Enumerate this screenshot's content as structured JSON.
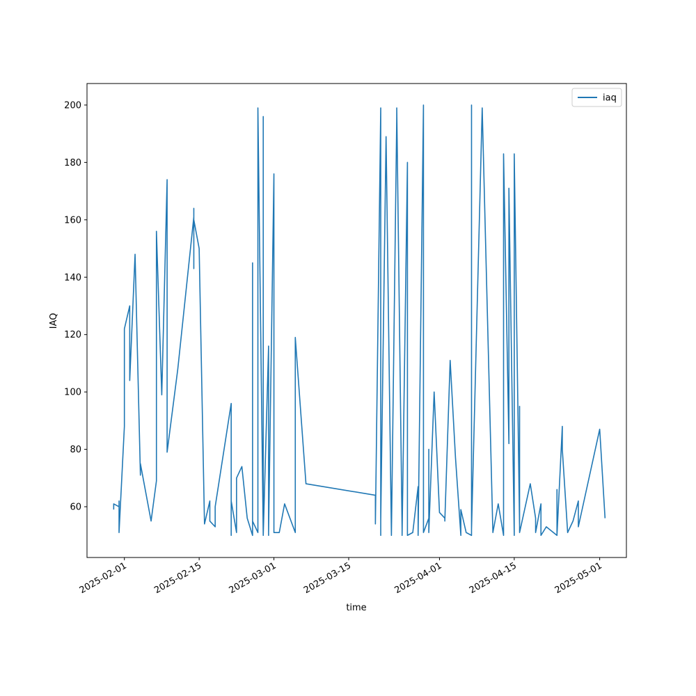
{
  "chart_data": {
    "type": "line",
    "xlabel": "time",
    "ylabel": "IAQ",
    "x": [
      "2025-01-30",
      "2025-01-30",
      "2025-01-31",
      "2025-01-31",
      "2025-01-31",
      "2025-01-31",
      "2025-01-31",
      "2025-02-01",
      "2025-02-01",
      "2025-02-01",
      "2025-02-02",
      "2025-02-02",
      "2025-02-03",
      "2025-02-03",
      "2025-02-04",
      "2025-02-04",
      "2025-02-06",
      "2025-02-07",
      "2025-02-07",
      "2025-02-08",
      "2025-02-09",
      "2025-02-09",
      "2025-02-11",
      "2025-02-14",
      "2025-02-14",
      "2025-02-14",
      "2025-02-14",
      "2025-02-15",
      "2025-02-16",
      "2025-02-17",
      "2025-02-17",
      "2025-02-18",
      "2025-02-18",
      "2025-02-21",
      "2025-02-21",
      "2025-02-21",
      "2025-02-22",
      "2025-02-22",
      "2025-02-23",
      "2025-02-24",
      "2025-02-25",
      "2025-02-25",
      "2025-02-25",
      "2025-02-25",
      "2025-02-26",
      "2025-02-26",
      "2025-02-27",
      "2025-02-27",
      "2025-02-27",
      "2025-02-27",
      "2025-02-28",
      "2025-02-28",
      "2025-02-28",
      "2025-03-01",
      "2025-03-01",
      "2025-03-02",
      "2025-03-03",
      "2025-03-05",
      "2025-03-05",
      "2025-03-05",
      "2025-03-07",
      "2025-03-20",
      "2025-03-20",
      "2025-03-21",
      "2025-03-21",
      "2025-03-21",
      "2025-03-22",
      "2025-03-23",
      "2025-03-24",
      "2025-03-24",
      "2025-03-25",
      "2025-03-25",
      "2025-03-26",
      "2025-03-26",
      "2025-03-27",
      "2025-03-28",
      "2025-03-28",
      "2025-03-29",
      "2025-03-29",
      "2025-03-30",
      "2025-03-30",
      "2025-03-30",
      "2025-03-31",
      "2025-04-01",
      "2025-04-02",
      "2025-04-02",
      "2025-04-03",
      "2025-04-04",
      "2025-04-05",
      "2025-04-05",
      "2025-04-06",
      "2025-04-07",
      "2025-04-07",
      "2025-04-07",
      "2025-04-09",
      "2025-04-11",
      "2025-04-12",
      "2025-04-13",
      "2025-04-13",
      "2025-04-14",
      "2025-04-14",
      "2025-04-15",
      "2025-04-15",
      "2025-04-16",
      "2025-04-16",
      "2025-04-16",
      "2025-04-18",
      "2025-04-19",
      "2025-04-19",
      "2025-04-20",
      "2025-04-20",
      "2025-04-21",
      "2025-04-23",
      "2025-04-23",
      "2025-04-23",
      "2025-04-24",
      "2025-04-24",
      "2025-04-25",
      "2025-04-26",
      "2025-04-27",
      "2025-04-27",
      "2025-04-27",
      "2025-05-01",
      "2025-05-02"
    ],
    "series": [
      {
        "name": "iaq",
        "color": "#1f77b4",
        "values": [
          59,
          61,
          60,
          62,
          51,
          57,
          51,
          88,
          92,
          122,
          130,
          104,
          148,
          148,
          71,
          75,
          55,
          69,
          156,
          99,
          174,
          79,
          108,
          161,
          143,
          164,
          160,
          150,
          54,
          62,
          55,
          53,
          60,
          96,
          50,
          62,
          51,
          70,
          74,
          56,
          50,
          145,
          55,
          55,
          51,
          199,
          50,
          56,
          196,
          50,
          116,
          50,
          51,
          176,
          51,
          51,
          61,
          51,
          57,
          119,
          68,
          64,
          54,
          199,
          50,
          55,
          189,
          50,
          196,
          199,
          52,
          50,
          180,
          50,
          51,
          67,
          50,
          200,
          51,
          56,
          80,
          51,
          100,
          58,
          56,
          55,
          111,
          77,
          50,
          59,
          51,
          50,
          200,
          52,
          199,
          51,
          61,
          50,
          183,
          82,
          171,
          50,
          183,
          53,
          95,
          51,
          68,
          56,
          51,
          61,
          50,
          53,
          50,
          66,
          50,
          88,
          80,
          51,
          55,
          62,
          56,
          53,
          87,
          56
        ]
      }
    ],
    "xlim": [
      "2025-01-25",
      "2025-05-06"
    ],
    "xticks": [
      "2025-02-01",
      "2025-02-15",
      "2025-03-01",
      "2025-03-15",
      "2025-04-01",
      "2025-04-15",
      "2025-05-01"
    ],
    "ylim": [
      42.3,
      207.5
    ],
    "yticks": [
      60,
      80,
      100,
      120,
      140,
      160,
      180,
      200
    ],
    "grid": false,
    "legend": "upper right"
  }
}
